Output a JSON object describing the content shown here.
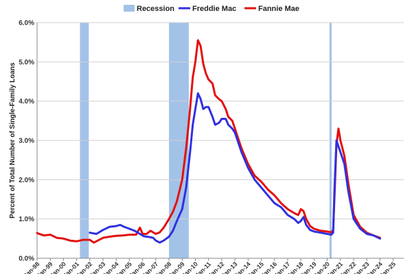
{
  "chart_data": {
    "type": "line",
    "title": "",
    "ylabel": "Percent of Total Number of Single-Family Loans",
    "xlabel": "",
    "ylim": [
      0,
      6
    ],
    "y_ticks": [
      "0.0%",
      "1.0%",
      "2.0%",
      "3.0%",
      "4.0%",
      "5.0%",
      "6.0%"
    ],
    "x_tick_labels": [
      "Jan-98",
      "Jan-99",
      "Jan-00",
      "Jan-01",
      "Jan-02",
      "Jan-03",
      "Jan-04",
      "Jan-05",
      "Jan-06",
      "Jan-07",
      "Jan-08",
      "Jan-09",
      "Jan-10",
      "Jan-11",
      "Jan-12",
      "Jan-13",
      "Jan-14",
      "Jan-15",
      "Jan-16",
      "Jan-17",
      "Jan-18",
      "Jan-19",
      "Jan-20",
      "Jan-21",
      "Jan-22",
      "Jan-23",
      "Jan-24",
      "Jan-25"
    ],
    "x_range": [
      1998,
      2025.8
    ],
    "grid": true,
    "legend_position": "top",
    "legend": [
      {
        "label": "Recession",
        "color": "#a3c2e8",
        "kind": "box"
      },
      {
        "label": "Freddie Mac",
        "color": "#3030e0",
        "kind": "line"
      },
      {
        "label": "Fannie Mae",
        "color": "#e21010",
        "kind": "line"
      }
    ],
    "recessions": [
      {
        "start": 2001.25,
        "end": 2001.92
      },
      {
        "start": 2008.0,
        "end": 2009.5
      },
      {
        "start": 2020.17,
        "end": 2020.33
      }
    ],
    "series": [
      {
        "name": "Fannie Mae",
        "color": "#e21010",
        "x": [
          1998.0,
          1998.5,
          1999.0,
          1999.5,
          2000.0,
          2000.5,
          2001.0,
          2001.5,
          2002.0,
          2002.3,
          2002.6,
          2003.0,
          2003.5,
          2004.0,
          2004.5,
          2005.0,
          2005.5,
          2005.8,
          2006.0,
          2006.3,
          2006.6,
          2007.0,
          2007.3,
          2007.6,
          2008.0,
          2008.3,
          2008.6,
          2009.0,
          2009.3,
          2009.6,
          2009.8,
          2010.0,
          2010.2,
          2010.4,
          2010.6,
          2010.8,
          2011.0,
          2011.3,
          2011.5,
          2011.8,
          2012.0,
          2012.3,
          2012.5,
          2012.8,
          2013.0,
          2013.5,
          2014.0,
          2014.5,
          2015.0,
          2015.5,
          2016.0,
          2016.5,
          2017.0,
          2017.5,
          2017.8,
          2018.0,
          2018.2,
          2018.4,
          2018.7,
          2019.0,
          2019.5,
          2020.0,
          2020.3,
          2020.45,
          2020.55,
          2020.7,
          2020.85,
          2021.0,
          2021.3,
          2021.6,
          2022.0,
          2022.5,
          2023.0,
          2023.5,
          2024.0
        ],
        "values": [
          0.64,
          0.58,
          0.6,
          0.52,
          0.5,
          0.45,
          0.43,
          0.47,
          0.47,
          0.4,
          0.45,
          0.52,
          0.55,
          0.57,
          0.58,
          0.6,
          0.6,
          0.78,
          0.62,
          0.62,
          0.7,
          0.62,
          0.66,
          0.78,
          1.0,
          1.18,
          1.45,
          2.0,
          2.8,
          3.8,
          4.6,
          5.0,
          5.55,
          5.4,
          4.95,
          4.7,
          4.55,
          4.45,
          4.15,
          4.05,
          4.0,
          3.8,
          3.6,
          3.5,
          3.3,
          2.8,
          2.4,
          2.1,
          1.95,
          1.75,
          1.6,
          1.4,
          1.25,
          1.15,
          1.1,
          1.25,
          1.2,
          1.0,
          0.82,
          0.75,
          0.7,
          0.68,
          0.66,
          0.72,
          1.6,
          2.9,
          3.3,
          3.0,
          2.6,
          1.9,
          1.1,
          0.8,
          0.65,
          0.58,
          0.52
        ]
      },
      {
        "name": "Freddie Mac",
        "color": "#3030e0",
        "x": [
          2002.0,
          2002.5,
          2003.0,
          2003.5,
          2004.0,
          2004.3,
          2004.6,
          2005.0,
          2005.4,
          2005.8,
          2006.1,
          2006.5,
          2006.8,
          2007.0,
          2007.3,
          2007.6,
          2008.0,
          2008.3,
          2008.6,
          2009.0,
          2009.3,
          2009.6,
          2009.8,
          2010.0,
          2010.2,
          2010.4,
          2010.6,
          2010.8,
          2011.0,
          2011.3,
          2011.5,
          2011.8,
          2012.0,
          2012.3,
          2012.5,
          2012.8,
          2013.0,
          2013.5,
          2014.0,
          2014.5,
          2015.0,
          2015.5,
          2016.0,
          2016.5,
          2017.0,
          2017.5,
          2017.8,
          2018.0,
          2018.2,
          2018.4,
          2018.7,
          2019.0,
          2019.5,
          2020.0,
          2020.3,
          2020.45,
          2020.55,
          2020.7,
          2020.85,
          2021.0,
          2021.3,
          2021.6,
          2022.0,
          2022.5,
          2023.0,
          2023.5,
          2024.0
        ],
        "values": [
          0.65,
          0.62,
          0.72,
          0.8,
          0.82,
          0.85,
          0.8,
          0.75,
          0.7,
          0.62,
          0.56,
          0.54,
          0.52,
          0.45,
          0.4,
          0.45,
          0.55,
          0.7,
          0.95,
          1.25,
          1.8,
          2.7,
          3.4,
          3.8,
          4.2,
          4.05,
          3.8,
          3.85,
          3.85,
          3.6,
          3.4,
          3.45,
          3.55,
          3.55,
          3.4,
          3.3,
          3.2,
          2.7,
          2.3,
          2.0,
          1.8,
          1.6,
          1.4,
          1.3,
          1.1,
          1.0,
          0.9,
          0.95,
          1.05,
          0.85,
          0.72,
          0.68,
          0.65,
          0.62,
          0.6,
          0.65,
          1.8,
          3.0,
          2.85,
          2.7,
          2.4,
          1.7,
          1.0,
          0.75,
          0.62,
          0.58,
          0.5
        ]
      }
    ]
  }
}
